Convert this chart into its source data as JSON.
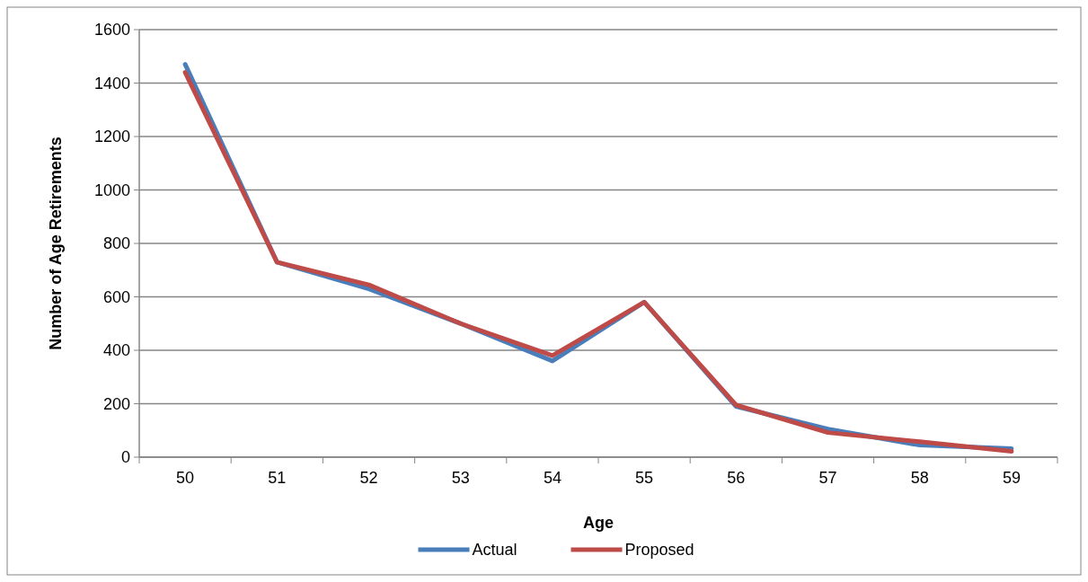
{
  "chart_data": {
    "type": "line",
    "xlabel": "Age",
    "ylabel": "Number of Age Retirements",
    "categories": [
      "50",
      "51",
      "52",
      "53",
      "54",
      "55",
      "56",
      "57",
      "58",
      "59"
    ],
    "series": [
      {
        "name": "Actual",
        "color": "#4a7ebb",
        "values": [
          1470,
          730,
          630,
          500,
          360,
          580,
          190,
          105,
          45,
          32
        ]
      },
      {
        "name": "Proposed",
        "color": "#be4b48",
        "values": [
          1440,
          730,
          645,
          500,
          380,
          580,
          195,
          92,
          58,
          22
        ]
      }
    ],
    "ylim": [
      0,
      1600
    ],
    "yticks": [
      0,
      200,
      400,
      600,
      800,
      1000,
      1200,
      1400,
      1600
    ],
    "grid": "y",
    "legend": "bottom",
    "marker": "none",
    "line_style": "solid"
  }
}
